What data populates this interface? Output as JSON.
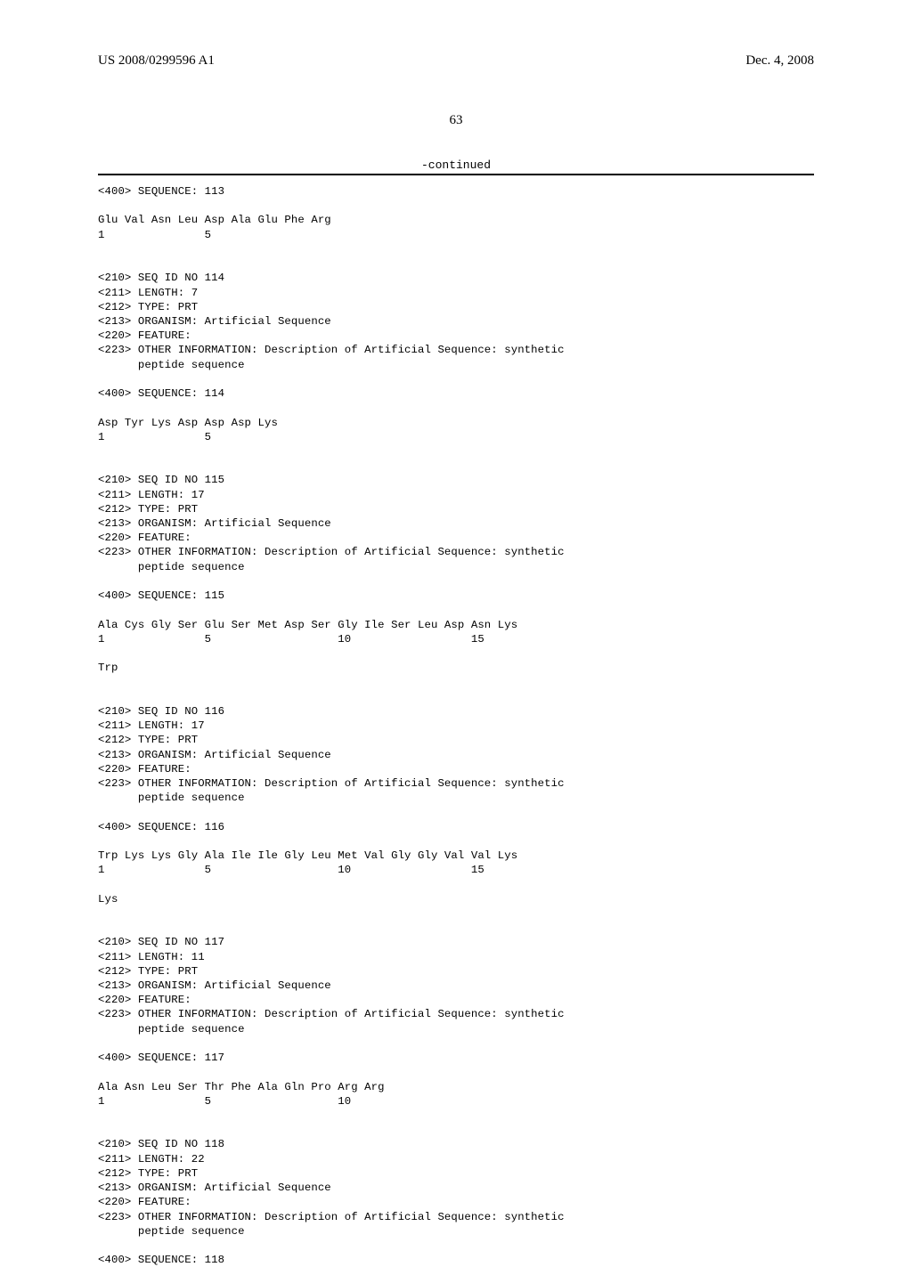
{
  "header": {
    "left": "US 2008/0299596 A1",
    "right": "Dec. 4, 2008"
  },
  "page_number": "63",
  "continued_label": "-continued",
  "seq_text": "<400> SEQUENCE: 113\n\nGlu Val Asn Leu Asp Ala Glu Phe Arg\n1               5\n\n\n<210> SEQ ID NO 114\n<211> LENGTH: 7\n<212> TYPE: PRT\n<213> ORGANISM: Artificial Sequence\n<220> FEATURE:\n<223> OTHER INFORMATION: Description of Artificial Sequence: synthetic\n      peptide sequence\n\n<400> SEQUENCE: 114\n\nAsp Tyr Lys Asp Asp Asp Lys\n1               5\n\n\n<210> SEQ ID NO 115\n<211> LENGTH: 17\n<212> TYPE: PRT\n<213> ORGANISM: Artificial Sequence\n<220> FEATURE:\n<223> OTHER INFORMATION: Description of Artificial Sequence: synthetic\n      peptide sequence\n\n<400> SEQUENCE: 115\n\nAla Cys Gly Ser Glu Ser Met Asp Ser Gly Ile Ser Leu Asp Asn Lys\n1               5                   10                  15\n\nTrp\n\n\n<210> SEQ ID NO 116\n<211> LENGTH: 17\n<212> TYPE: PRT\n<213> ORGANISM: Artificial Sequence\n<220> FEATURE:\n<223> OTHER INFORMATION: Description of Artificial Sequence: synthetic\n      peptide sequence\n\n<400> SEQUENCE: 116\n\nTrp Lys Lys Gly Ala Ile Ile Gly Leu Met Val Gly Gly Val Val Lys\n1               5                   10                  15\n\nLys\n\n\n<210> SEQ ID NO 117\n<211> LENGTH: 11\n<212> TYPE: PRT\n<213> ORGANISM: Artificial Sequence\n<220> FEATURE:\n<223> OTHER INFORMATION: Description of Artificial Sequence: synthetic\n      peptide sequence\n\n<400> SEQUENCE: 117\n\nAla Asn Leu Ser Thr Phe Ala Gln Pro Arg Arg\n1               5                   10\n\n\n<210> SEQ ID NO 118\n<211> LENGTH: 22\n<212> TYPE: PRT\n<213> ORGANISM: Artificial Sequence\n<220> FEATURE:\n<223> OTHER INFORMATION: Description of Artificial Sequence: synthetic\n      peptide sequence\n\n<400> SEQUENCE: 118"
}
